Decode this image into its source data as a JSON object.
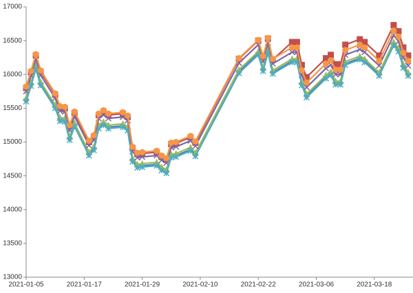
{
  "chart_data": {
    "type": "line",
    "x": [
      "2021-01-05",
      "2021-01-06",
      "2021-01-07",
      "2021-01-08",
      "2021-01-11",
      "2021-01-12",
      "2021-01-13",
      "2021-01-14",
      "2021-01-15",
      "2021-01-18",
      "2021-01-19",
      "2021-01-20",
      "2021-01-21",
      "2021-01-22",
      "2021-01-25",
      "2021-01-26",
      "2021-01-27",
      "2021-01-28",
      "2021-01-29",
      "2021-02-01",
      "2021-02-02",
      "2021-02-03",
      "2021-02-04",
      "2021-02-05",
      "2021-02-08",
      "2021-02-09",
      "2021-02-18",
      "2021-02-22",
      "2021-02-23",
      "2021-02-24",
      "2021-02-25",
      "2021-03-01",
      "2021-03-02",
      "2021-03-03",
      "2021-03-04",
      "2021-03-08",
      "2021-03-09",
      "2021-03-10",
      "2021-03-11",
      "2021-03-12",
      "2021-03-15",
      "2021-03-16",
      "2021-03-19",
      "2021-03-22",
      "2021-03-23",
      "2021-03-24",
      "2021-03-25"
    ],
    "series": [
      {
        "color": "#4f81bd",
        "marker": "diamond",
        "values": [
          15620,
          15850,
          16100,
          15860,
          15520,
          15330,
          15320,
          15050,
          15250,
          14820,
          14900,
          15220,
          15270,
          15220,
          15240,
          15190,
          14730,
          14640,
          14650,
          14670,
          14600,
          14560,
          14790,
          14800,
          14890,
          14810,
          16040,
          16310,
          16070,
          16340,
          16030,
          16200,
          16200,
          15860,
          15680,
          15960,
          16010,
          15870,
          15870,
          16160,
          16240,
          16200,
          16000,
          16450,
          16360,
          16120,
          16000
        ]
      },
      {
        "color": "#c0504d",
        "marker": "square",
        "values": [
          15800,
          16030,
          16280,
          16040,
          15700,
          15510,
          15500,
          15230,
          15430,
          15000,
          15080,
          15400,
          15450,
          15400,
          15420,
          15370,
          14910,
          14820,
          14830,
          14850,
          14780,
          14740,
          14970,
          14980,
          15070,
          14990,
          16230,
          16500,
          16260,
          16530,
          16220,
          16480,
          16480,
          16140,
          15960,
          16240,
          16290,
          16150,
          16150,
          16440,
          16520,
          16480,
          16280,
          16730,
          16640,
          16400,
          16280
        ]
      },
      {
        "color": "#9bbb59",
        "marker": "triangle",
        "values": [
          15650,
          15880,
          16130,
          15890,
          15550,
          15360,
          15350,
          15080,
          15280,
          14850,
          14930,
          15250,
          15300,
          15250,
          15270,
          15220,
          14760,
          14670,
          14680,
          14700,
          14630,
          14590,
          14820,
          14830,
          14920,
          14840,
          16070,
          16340,
          16100,
          16370,
          16060,
          16230,
          16230,
          15890,
          15710,
          15990,
          16040,
          15900,
          15900,
          16190,
          16270,
          16230,
          16030,
          16480,
          16390,
          16150,
          16030
        ]
      },
      {
        "color": "#8064a2",
        "marker": "x",
        "values": [
          15750,
          15980,
          16230,
          15990,
          15650,
          15460,
          15450,
          15180,
          15380,
          14950,
          15030,
          15350,
          15400,
          15350,
          15370,
          15320,
          14860,
          14770,
          14780,
          14800,
          14730,
          14690,
          14920,
          14930,
          15020,
          14940,
          16170,
          16440,
          16200,
          16470,
          16160,
          16330,
          16330,
          15990,
          15810,
          16090,
          16140,
          16000,
          16000,
          16290,
          16370,
          16330,
          16130,
          16580,
          16490,
          16250,
          16130
        ]
      },
      {
        "color": "#4bacc6",
        "marker": "asterisk",
        "values": [
          15600,
          15830,
          16080,
          15840,
          15500,
          15310,
          15300,
          15030,
          15230,
          14800,
          14880,
          15200,
          15250,
          15200,
          15220,
          15170,
          14710,
          14620,
          14630,
          14650,
          14580,
          14540,
          14770,
          14780,
          14870,
          14790,
          16020,
          16290,
          16050,
          16320,
          16010,
          16180,
          16180,
          15840,
          15660,
          15940,
          15990,
          15850,
          15850,
          16140,
          16220,
          16180,
          15980,
          16430,
          16340,
          16100,
          15980
        ]
      },
      {
        "color": "#f79646",
        "marker": "circle",
        "values": [
          15820,
          16050,
          16300,
          16060,
          15720,
          15530,
          15520,
          15250,
          15450,
          15020,
          15100,
          15420,
          15470,
          15420,
          15440,
          15390,
          14930,
          14840,
          14850,
          14870,
          14800,
          14760,
          14990,
          15000,
          15090,
          15010,
          16240,
          16510,
          16270,
          16540,
          16230,
          16400,
          16400,
          16060,
          15880,
          16160,
          16210,
          16070,
          16070,
          16360,
          16440,
          16400,
          16200,
          16650,
          16560,
          16320,
          16200
        ]
      }
    ],
    "xlim": [
      "2021-01-05",
      "2021-03-26"
    ],
    "xticks": [
      "2021-01-05",
      "2021-01-17",
      "2021-01-29",
      "2021-02-10",
      "2021-02-22",
      "2021-03-06",
      "2021-03-18"
    ],
    "ylim": [
      13000,
      17000
    ],
    "yticks": [
      13000,
      13500,
      14000,
      14500,
      15000,
      15500,
      16000,
      16500,
      17000
    ],
    "grid": false
  }
}
